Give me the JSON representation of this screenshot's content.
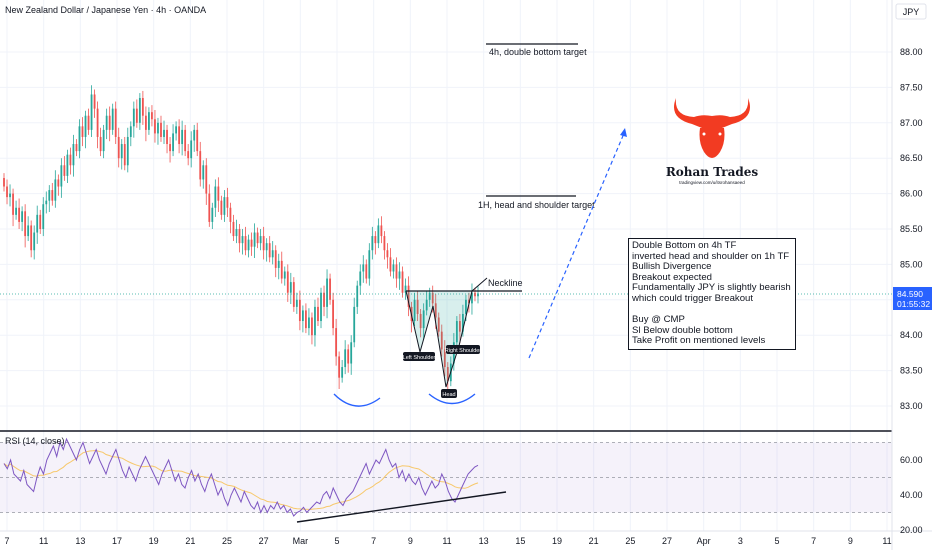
{
  "header": {
    "title": "New Zealand Dollar / Japanese Yen · 4h · OANDA",
    "currency": "JPY"
  },
  "price_badge": {
    "price": "84.590",
    "countdown": "01:55:32",
    "color": "#2962ff"
  },
  "rsi": {
    "label": "RSI (14, close)",
    "ticks": [
      "60.00",
      "40.00",
      "20.00"
    ],
    "upper": 70,
    "lower": 30
  },
  "annotations": {
    "target_4h": "4h, double bottom target",
    "target_1h": "1H, head and shoulder target",
    "neckline": "Neckline",
    "left_shoulder": "Left Shoulder",
    "right_shoulder": "Right Shoulder",
    "head": "Head"
  },
  "logo": {
    "title": "Rohan Trades",
    "subtitle": "tradingview.com/u/itsrohansaeed",
    "color": "#f23b22"
  },
  "notes": [
    "Double Bottom on 4h TF",
    "inverted head and shoulder on 1h TF",
    "Bullish Divergence",
    "Breakout expected",
    "Fundamentally JPY is slightly bearish",
    "which could trigger Breakout",
    "",
    "Buy @ CMP",
    "Sl Below double bottom",
    "Take Profit on mentioned levels"
  ],
  "chart_data": {
    "type": "candlestick",
    "symbol": "New Zealand Dollar / Japanese Yen · 4h · OANDA",
    "y_axis": {
      "ticks": [
        83.0,
        83.5,
        84.0,
        84.5,
        85.0,
        85.5,
        86.0,
        86.5,
        87.0,
        87.5,
        88.0
      ],
      "ylim": [
        82.72,
        88.63
      ]
    },
    "x_ticks": [
      "7",
      "11",
      "13",
      "17",
      "19",
      "21",
      "25",
      "27",
      "Mar",
      "5",
      "7",
      "9",
      "11",
      "13",
      "15",
      "19",
      "21",
      "25",
      "27",
      "Apr",
      "3",
      "5",
      "7",
      "9",
      "11"
    ],
    "colors": {
      "up": "#26a69a",
      "down": "#ef5350",
      "rsi": "#7e57c2",
      "rsi_ma": "#f7c86b"
    },
    "closes": [
      86.1,
      85.95,
      86.0,
      85.7,
      85.8,
      85.6,
      85.75,
      85.4,
      85.55,
      85.2,
      85.45,
      85.7,
      85.5,
      85.85,
      85.9,
      86.05,
      85.9,
      86.2,
      86.1,
      86.4,
      86.25,
      86.55,
      86.4,
      86.7,
      86.6,
      86.95,
      86.8,
      87.1,
      86.9,
      87.4,
      87.2,
      86.8,
      86.6,
      86.9,
      87.1,
      86.9,
      87.2,
      86.8,
      86.5,
      86.7,
      86.4,
      86.8,
      86.95,
      87.2,
      87.0,
      87.35,
      87.1,
      86.9,
      87.15,
      87.05,
      86.85,
      87.0,
      86.8,
      86.9,
      86.7,
      86.6,
      86.85,
      86.95,
      86.7,
      86.9,
      86.6,
      86.5,
      86.75,
      86.9,
      86.6,
      86.2,
      86.4,
      86.0,
      85.6,
      85.8,
      86.1,
      85.9,
      85.7,
      85.95,
      85.8,
      85.6,
      85.4,
      85.5,
      85.3,
      85.4,
      85.2,
      85.35,
      85.25,
      85.45,
      85.3,
      85.4,
      85.2,
      85.3,
      85.1,
      85.2,
      84.95,
      85.05,
      84.8,
      84.9,
      84.6,
      84.75,
      84.4,
      84.5,
      84.2,
      84.35,
      84.1,
      84.25,
      84.0,
      84.4,
      84.2,
      84.6,
      84.4,
      84.8,
      84.5,
      84.1,
      83.7,
      83.4,
      83.55,
      83.8,
      83.6,
      83.9,
      84.4,
      84.7,
      84.9,
      85.0,
      84.8,
      85.2,
      85.4,
      85.3,
      85.55,
      85.4,
      85.2,
      85.1,
      84.9,
      85.0,
      84.8,
      84.9,
      84.6,
      84.7,
      84.4,
      84.2,
      84.5,
      84.3,
      84.1,
      84.35,
      84.5,
      84.6,
      84.45,
      84.25,
      84.05,
      83.8,
      83.55,
      83.35,
      83.6,
      83.9,
      84.2,
      84.05,
      84.3,
      84.5,
      84.45,
      84.6,
      84.55,
      84.59
    ],
    "rsi_values": [
      58,
      55,
      60,
      52,
      50,
      48,
      54,
      46,
      44,
      42,
      50,
      56,
      52,
      60,
      64,
      68,
      62,
      70,
      66,
      72,
      68,
      64,
      60,
      66,
      70,
      64,
      58,
      62,
      66,
      60,
      56,
      52,
      58,
      62,
      66,
      60,
      54,
      50,
      56,
      52,
      48,
      54,
      58,
      62,
      58,
      54,
      50,
      46,
      52,
      56,
      60,
      54,
      48,
      52,
      46,
      44,
      50,
      54,
      48,
      52,
      46,
      42,
      48,
      52,
      46,
      40,
      44,
      38,
      34,
      40,
      44,
      40,
      36,
      42,
      38,
      34,
      32,
      36,
      30,
      34,
      30,
      34,
      32,
      36,
      32,
      34,
      30,
      32,
      28,
      30,
      31,
      33,
      30,
      32,
      34,
      36,
      35,
      40,
      42,
      38,
      44,
      40,
      36,
      34,
      38,
      40,
      42,
      46,
      50,
      54,
      58,
      52,
      56,
      60,
      58,
      62,
      66,
      60,
      56,
      58,
      50,
      54,
      48,
      52,
      48,
      46,
      50,
      44,
      40,
      44,
      48,
      44,
      46,
      52,
      48,
      42,
      38,
      36,
      40,
      44,
      48,
      52,
      54,
      56,
      57
    ]
  }
}
